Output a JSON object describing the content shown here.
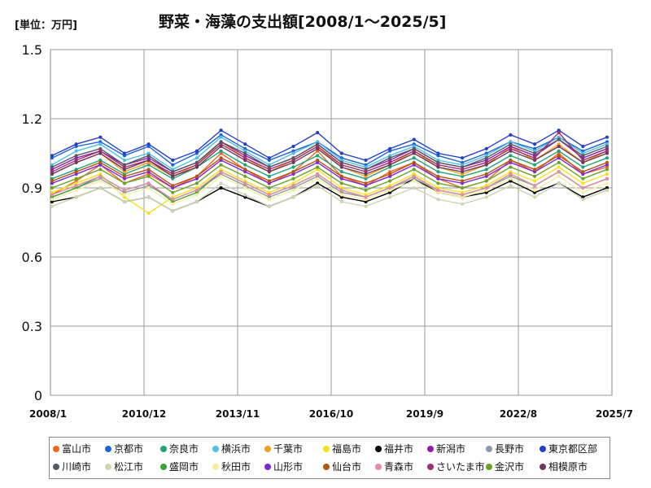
{
  "header": {
    "unit": "[単位：万円]",
    "title": "野菜・海藻の支出額[2008/1～2025/5]"
  },
  "chart_data": {
    "type": "line",
    "title": "野菜・海藻の支出額[2008/1～2025/5]",
    "unit": "[単位：万円]",
    "ylim": [
      0,
      1.5
    ],
    "yticks": [
      "0",
      "0.3",
      "0.6",
      "0.9",
      "1.2",
      "1.5"
    ],
    "xrange": [
      "2008/1",
      "2025/7"
    ],
    "xticks": [
      "2008/1",
      "2010/12",
      "2013/11",
      "2016/10",
      "2019/9",
      "2022/8",
      "2025/7"
    ],
    "grid": true,
    "legend_position": "bottom",
    "series": [
      {
        "name": "富山市",
        "color": "#f26522",
        "values": [
          0.87,
          0.93,
          1.0,
          0.92,
          0.96,
          0.9,
          0.95,
          1.05,
          0.98,
          0.92,
          0.97,
          1.06,
          0.95,
          0.91,
          0.97,
          1.01,
          0.94,
          0.9,
          0.93,
          1.02,
          0.97,
          1.05,
          0.96,
          0.99
        ]
      },
      {
        "name": "京都市",
        "color": "#1e63d6",
        "values": [
          1.03,
          1.08,
          1.1,
          1.04,
          1.08,
          1.0,
          1.05,
          1.13,
          1.07,
          1.02,
          1.06,
          1.1,
          1.03,
          1.0,
          1.06,
          1.09,
          1.04,
          1.01,
          1.05,
          1.1,
          1.07,
          1.12,
          1.06,
          1.1
        ]
      },
      {
        "name": "奈良市",
        "color": "#1fa37a",
        "values": [
          0.94,
          0.98,
          1.02,
          0.96,
          1.0,
          0.94,
          0.99,
          1.06,
          1.0,
          0.95,
          0.99,
          1.04,
          0.97,
          0.94,
          0.99,
          1.03,
          0.97,
          0.95,
          0.98,
          1.04,
          1.0,
          1.06,
          0.99,
          1.03
        ]
      },
      {
        "name": "横浜市",
        "color": "#4bbfe8",
        "values": [
          1.0,
          1.06,
          1.09,
          1.02,
          1.05,
          0.98,
          1.03,
          1.12,
          1.06,
          1.0,
          1.05,
          1.1,
          1.02,
          0.99,
          1.04,
          1.08,
          1.02,
          1.0,
          1.04,
          1.1,
          1.06,
          1.12,
          1.05,
          1.09
        ]
      },
      {
        "name": "千葉市",
        "color": "#f5a01a",
        "values": [
          0.96,
          1.01,
          1.05,
          0.97,
          1.01,
          0.95,
          1.0,
          1.1,
          1.03,
          0.97,
          1.02,
          1.08,
          0.99,
          0.95,
          1.0,
          1.06,
          0.99,
          0.96,
          1.0,
          1.08,
          1.02,
          1.09,
          1.01,
          1.06
        ]
      },
      {
        "name": "福島市",
        "color": "#f7e11b",
        "values": [
          0.88,
          0.92,
          0.96,
          0.86,
          0.79,
          0.86,
          0.9,
          0.98,
          0.93,
          0.88,
          0.92,
          0.98,
          0.9,
          0.87,
          0.91,
          0.96,
          0.9,
          0.88,
          0.91,
          0.97,
          0.93,
          0.99,
          0.92,
          0.96
        ]
      },
      {
        "name": "福井市",
        "color": "#000000",
        "values": [
          0.84,
          0.86,
          0.9,
          0.84,
          0.86,
          0.8,
          0.84,
          0.9,
          0.86,
          0.82,
          0.86,
          0.92,
          0.86,
          0.84,
          0.88,
          0.94,
          0.88,
          0.86,
          0.88,
          0.93,
          0.88,
          0.92,
          0.86,
          0.9
        ]
      },
      {
        "name": "新潟市",
        "color": "#8e1ea8",
        "values": [
          0.98,
          1.03,
          1.06,
          1.0,
          1.03,
          0.97,
          1.01,
          1.1,
          1.04,
          0.99,
          1.03,
          1.09,
          1.01,
          0.98,
          1.02,
          1.07,
          1.01,
          0.99,
          1.02,
          1.08,
          1.04,
          1.11,
          1.03,
          1.07
        ]
      },
      {
        "name": "長野市",
        "color": "#8c99a6",
        "values": [
          0.86,
          0.9,
          0.94,
          0.88,
          0.91,
          0.85,
          0.89,
          0.96,
          0.91,
          0.86,
          0.9,
          0.95,
          0.88,
          0.86,
          0.9,
          0.94,
          0.89,
          0.87,
          0.9,
          0.95,
          0.91,
          0.97,
          0.9,
          0.94
        ]
      },
      {
        "name": "東京都区部",
        "color": "#2440c8",
        "values": [
          1.04,
          1.09,
          1.12,
          1.05,
          1.09,
          1.02,
          1.06,
          1.15,
          1.09,
          1.03,
          1.08,
          1.14,
          1.05,
          1.02,
          1.07,
          1.11,
          1.05,
          1.03,
          1.07,
          1.13,
          1.09,
          1.15,
          1.08,
          1.12
        ]
      },
      {
        "name": "川崎市",
        "color": "#555a63",
        "values": [
          0.99,
          1.04,
          1.07,
          1.0,
          1.04,
          0.97,
          1.01,
          1.1,
          1.05,
          0.99,
          1.03,
          1.09,
          1.01,
          0.98,
          1.03,
          1.07,
          1.01,
          0.99,
          1.03,
          1.09,
          1.05,
          1.11,
          1.04,
          1.08
        ]
      },
      {
        "name": "松江市",
        "color": "#cfd4b0",
        "values": [
          0.82,
          0.86,
          0.9,
          0.84,
          0.86,
          0.8,
          0.84,
          0.92,
          0.87,
          0.82,
          0.86,
          0.91,
          0.84,
          0.82,
          0.86,
          0.9,
          0.85,
          0.83,
          0.86,
          0.91,
          0.86,
          0.92,
          0.85,
          0.89
        ]
      },
      {
        "name": "盛岡市",
        "color": "#3aa33a",
        "values": [
          0.86,
          0.9,
          0.95,
          0.89,
          0.92,
          0.84,
          0.88,
          0.97,
          0.92,
          0.87,
          0.91,
          0.96,
          0.89,
          0.86,
          0.9,
          0.95,
          0.89,
          0.87,
          0.9,
          0.96,
          0.91,
          0.97,
          0.9,
          0.94
        ]
      },
      {
        "name": "秋田市",
        "color": "#f4f0a0",
        "values": [
          0.85,
          0.89,
          0.93,
          0.87,
          0.9,
          0.83,
          0.87,
          0.95,
          0.9,
          0.85,
          0.89,
          0.94,
          0.87,
          0.85,
          0.89,
          0.93,
          0.88,
          0.86,
          0.89,
          0.94,
          0.89,
          0.95,
          0.88,
          0.92
        ]
      },
      {
        "name": "山形市",
        "color": "#7a2bd6",
        "values": [
          0.92,
          0.96,
          1.0,
          0.94,
          0.97,
          0.9,
          0.94,
          1.02,
          0.97,
          0.92,
          0.96,
          1.01,
          0.94,
          0.91,
          0.95,
          1.0,
          0.94,
          0.92,
          0.95,
          1.01,
          0.97,
          1.03,
          0.96,
          1.0
        ]
      },
      {
        "name": "仙台市",
        "color": "#b8520f",
        "values": [
          0.93,
          0.97,
          1.01,
          0.95,
          0.98,
          0.91,
          0.95,
          1.03,
          0.98,
          0.93,
          0.97,
          1.02,
          0.95,
          0.92,
          0.96,
          1.01,
          0.95,
          0.93,
          0.96,
          1.02,
          0.98,
          1.04,
          0.97,
          1.01
        ]
      },
      {
        "name": "青森市",
        "color": "#e68aa6",
        "values": [
          0.87,
          0.91,
          0.95,
          0.89,
          0.92,
          0.85,
          0.89,
          0.97,
          0.92,
          0.87,
          0.91,
          0.96,
          0.89,
          0.86,
          0.9,
          0.95,
          0.89,
          0.87,
          0.9,
          0.96,
          0.91,
          0.97,
          0.9,
          0.94
        ]
      },
      {
        "name": "さいたま市",
        "color": "#a0306e",
        "values": [
          0.97,
          1.02,
          1.06,
          0.99,
          1.02,
          0.96,
          1.0,
          1.09,
          1.03,
          0.98,
          1.02,
          1.08,
          1.0,
          0.97,
          1.01,
          1.06,
          1.0,
          0.98,
          1.01,
          1.07,
          1.03,
          1.14,
          1.02,
          1.06
        ]
      },
      {
        "name": "金沢市",
        "color": "#6aa32a",
        "values": [
          0.9,
          0.94,
          0.98,
          0.92,
          0.95,
          0.88,
          0.92,
          1.0,
          0.95,
          0.9,
          0.94,
          0.99,
          0.92,
          0.89,
          0.93,
          0.98,
          0.92,
          0.9,
          0.93,
          0.99,
          0.95,
          1.01,
          0.94,
          0.98
        ]
      },
      {
        "name": "相模原市",
        "color": "#6b3a5f",
        "values": [
          0.96,
          1.01,
          1.05,
          0.98,
          1.02,
          0.95,
          0.99,
          1.08,
          1.02,
          0.97,
          1.01,
          1.07,
          0.99,
          0.96,
          1.0,
          1.05,
          0.99,
          0.97,
          1.0,
          1.06,
          1.02,
          1.08,
          1.01,
          1.05
        ]
      }
    ]
  }
}
